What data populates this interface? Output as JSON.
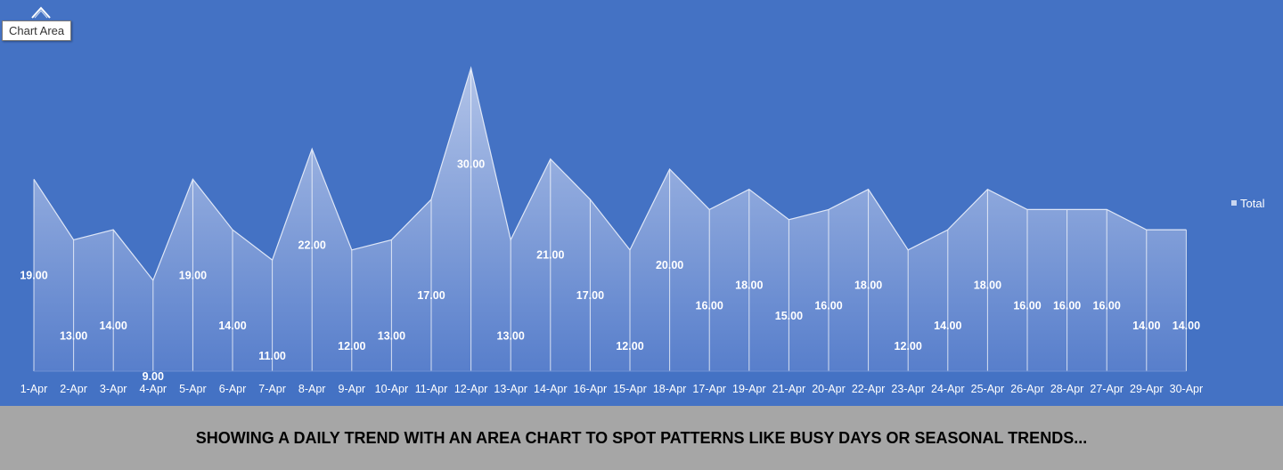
{
  "tooltip": {
    "label": "Chart Area"
  },
  "caption": "SHOWING A DAILY TREND WITH AN AREA CHART TO SPOT PATTERNS LIKE BUSY DAYS OR SEASONAL TRENDS...",
  "colors": {
    "background": "#4472c4",
    "caption_bar": "#a6a6a6",
    "area_top": "#b8c8ea",
    "area_bottom": "#5a80cc",
    "label": "#ffffff"
  },
  "chart_data": {
    "type": "area",
    "title": "",
    "xlabel": "",
    "ylabel": "",
    "ylim": [
      0,
      30
    ],
    "grid": false,
    "legend": {
      "entries": [
        "Total"
      ],
      "position": "right"
    },
    "categories": [
      "1-Apr",
      "2-Apr",
      "3-Apr",
      "4-Apr",
      "5-Apr",
      "6-Apr",
      "7-Apr",
      "8-Apr",
      "9-Apr",
      "10-Apr",
      "11-Apr",
      "12-Apr",
      "13-Apr",
      "14-Apr",
      "16-Apr",
      "15-Apr",
      "18-Apr",
      "17-Apr",
      "19-Apr",
      "21-Apr",
      "20-Apr",
      "22-Apr",
      "23-Apr",
      "24-Apr",
      "25-Apr",
      "26-Apr",
      "28-Apr",
      "27-Apr",
      "29-Apr",
      "30-Apr"
    ],
    "series": [
      {
        "name": "Total",
        "values": [
          19,
          13,
          14,
          9,
          19,
          14,
          11,
          22,
          12,
          13,
          17,
          30,
          13,
          21,
          17,
          12,
          20,
          16,
          18,
          15,
          16,
          18,
          12,
          14,
          18,
          16,
          16,
          16,
          14,
          14
        ],
        "labels": [
          "19.00",
          "13.00",
          "14.00",
          "9.00",
          "19.00",
          "14.00",
          "11.00",
          "22.00",
          "12.00",
          "13.00",
          "17.00",
          "30.00",
          "13.00",
          "21.00",
          "17.00",
          "12.00",
          "20.00",
          "16.00",
          "18.00",
          "15.00",
          "16.00",
          "18.00",
          "12.00",
          "14.00",
          "18.00",
          "16.00",
          "16.00",
          "16.00",
          "14.00",
          "14.00"
        ]
      }
    ]
  }
}
